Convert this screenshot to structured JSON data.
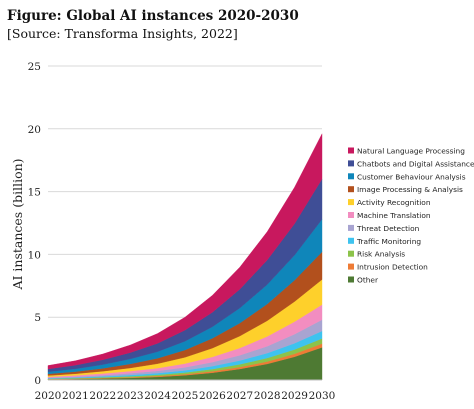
{
  "figure": {
    "title": "Figure: Global AI instances 2020-2030",
    "source": "[Source: Transforma Insights, 2022]"
  },
  "chart_data": {
    "type": "area",
    "stacked": true,
    "x": [
      "2020",
      "2021",
      "2022",
      "2023",
      "2024",
      "2025",
      "2026",
      "2027",
      "2028",
      "2029",
      "2030"
    ],
    "xlabel": "",
    "ylabel": "AI instances (billion)",
    "ylim": [
      0,
      25
    ],
    "yticks": [
      0,
      5,
      10,
      15,
      20,
      25
    ],
    "grid": "horizontal",
    "legend_position": "right",
    "series": [
      {
        "name": "Other",
        "color": "#4e7a33",
        "values": [
          0.05,
          0.08,
          0.12,
          0.17,
          0.25,
          0.38,
          0.58,
          0.88,
          1.28,
          1.85,
          2.6
        ]
      },
      {
        "name": "Intrusion Detection",
        "color": "#ee7b35",
        "values": [
          0.02,
          0.03,
          0.04,
          0.05,
          0.07,
          0.09,
          0.12,
          0.15,
          0.19,
          0.24,
          0.3
        ]
      },
      {
        "name": "Risk Analysis",
        "color": "#8cc34a",
        "values": [
          0.03,
          0.04,
          0.06,
          0.08,
          0.1,
          0.13,
          0.17,
          0.22,
          0.28,
          0.34,
          0.4
        ]
      },
      {
        "name": "Traffic Monitoring",
        "color": "#3ec3ef",
        "values": [
          0.04,
          0.05,
          0.07,
          0.1,
          0.13,
          0.17,
          0.23,
          0.3,
          0.39,
          0.5,
          0.6
        ]
      },
      {
        "name": "Threat Detection",
        "color": "#a8a4d1",
        "values": [
          0.05,
          0.07,
          0.1,
          0.14,
          0.18,
          0.24,
          0.32,
          0.42,
          0.55,
          0.72,
          0.9
        ]
      },
      {
        "name": "Machine Translation",
        "color": "#f28dc0",
        "values": [
          0.07,
          0.1,
          0.13,
          0.17,
          0.22,
          0.3,
          0.42,
          0.58,
          0.78,
          1.0,
          1.2
        ]
      },
      {
        "name": "Activity Recognition",
        "color": "#fed02b",
        "values": [
          0.1,
          0.13,
          0.18,
          0.25,
          0.35,
          0.5,
          0.7,
          0.95,
          1.25,
          1.6,
          2.0
        ]
      },
      {
        "name": "Image Processing & Analysis",
        "color": "#b2501d",
        "values": [
          0.13,
          0.17,
          0.23,
          0.32,
          0.43,
          0.58,
          0.78,
          1.03,
          1.33,
          1.7,
          2.2
        ]
      },
      {
        "name": "Customer Behaviour Analysis",
        "color": "#0f86ba",
        "values": [
          0.17,
          0.22,
          0.3,
          0.4,
          0.53,
          0.7,
          0.92,
          1.2,
          1.55,
          2.0,
          2.6
        ]
      },
      {
        "name": "Chatbots and Digital Assistance",
        "color": "#3f4e96",
        "values": [
          0.22,
          0.29,
          0.38,
          0.5,
          0.66,
          0.88,
          1.15,
          1.5,
          1.95,
          2.5,
          3.2
        ]
      },
      {
        "name": "Natural Language Processing",
        "color": "#c8185e",
        "values": [
          0.27,
          0.35,
          0.46,
          0.6,
          0.78,
          1.03,
          1.35,
          1.75,
          2.25,
          2.9,
          3.6
        ]
      }
    ]
  }
}
